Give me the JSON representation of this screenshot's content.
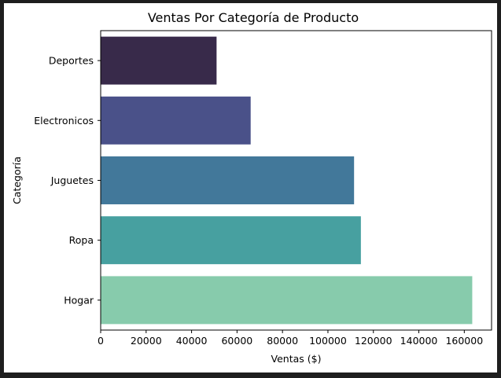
{
  "chart_data": {
    "type": "bar",
    "orientation": "horizontal",
    "title": "Ventas Por Categoría de Producto",
    "xlabel": "Ventas ($)",
    "ylabel": "Categoría",
    "categories": [
      "Deportes",
      "Electronicos",
      "Juguetes",
      "Ropa",
      "Hogar"
    ],
    "values": [
      51000,
      66000,
      111500,
      114500,
      163500
    ],
    "colors": [
      "#382a4a",
      "#4a5189",
      "#42789a",
      "#47a0a0",
      "#87cbac"
    ],
    "xlim": [
      0,
      172000
    ],
    "xticks": [
      0,
      20000,
      40000,
      60000,
      80000,
      100000,
      120000,
      140000,
      160000
    ],
    "xtick_labels": [
      "0",
      "20000",
      "40000",
      "60000",
      "80000",
      "100000",
      "120000",
      "140000",
      "160000"
    ],
    "grid": false,
    "legend": "none"
  }
}
